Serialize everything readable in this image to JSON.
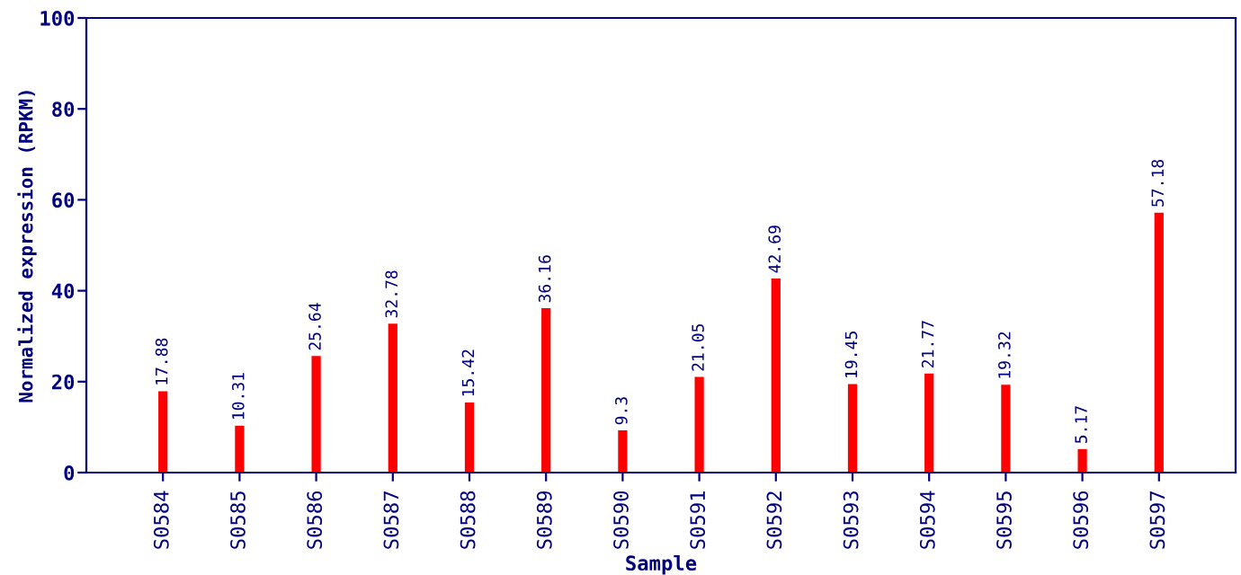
{
  "chart_data": {
    "type": "bar",
    "xlabel": "Sample",
    "ylabel": "Normalized expression (RPKM)",
    "categories": [
      "S0584",
      "S0585",
      "S0586",
      "S0587",
      "S0588",
      "S0589",
      "S0590",
      "S0591",
      "S0592",
      "S0593",
      "S0594",
      "S0595",
      "S0596",
      "S0597"
    ],
    "values": [
      17.88,
      10.31,
      25.64,
      32.78,
      15.42,
      36.16,
      9.3,
      21.05,
      42.69,
      19.45,
      21.77,
      19.32,
      5.17,
      57.18
    ],
    "color": "#ff0000",
    "ylim": [
      0,
      100
    ],
    "yticks": [
      0,
      20,
      40,
      60,
      80,
      100
    ],
    "data_labels": true,
    "grid": false,
    "legend": false
  }
}
